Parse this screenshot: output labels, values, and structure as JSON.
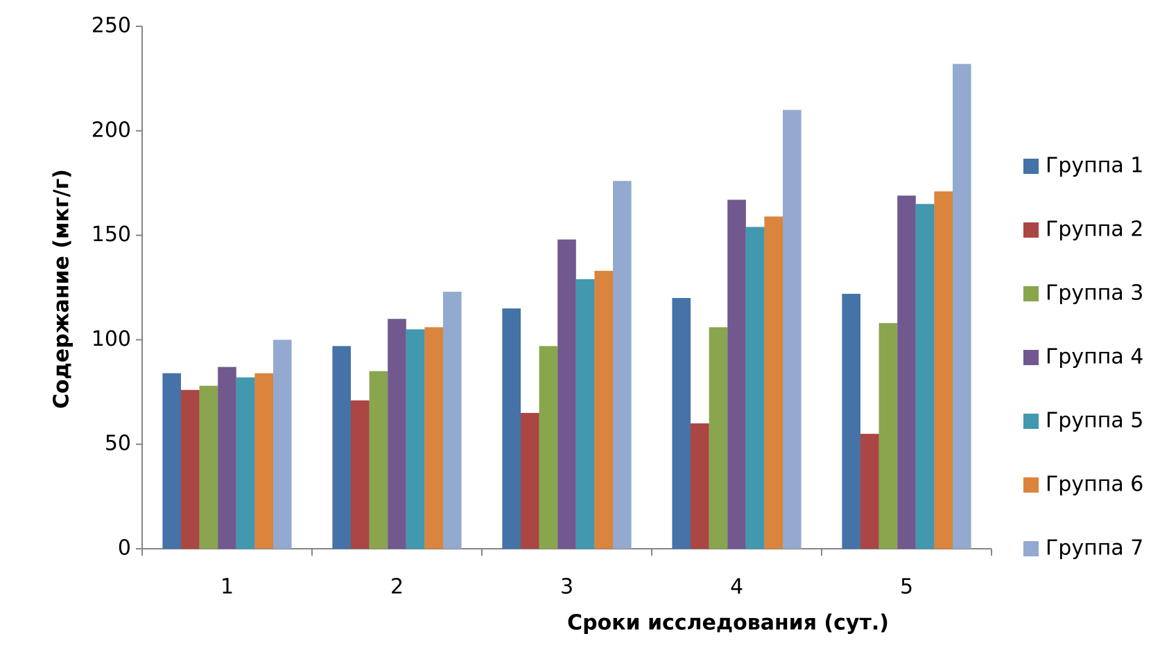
{
  "chart_data": {
    "type": "bar",
    "y_label": "Содержание (мкг/г)",
    "x_label": "Сроки исследования (сут.)",
    "categories": [
      "1",
      "2",
      "3",
      "4",
      "5"
    ],
    "series": [
      {
        "name": "Группа 1",
        "color": "#4572a7",
        "values": [
          84,
          97,
          115,
          120,
          122
        ]
      },
      {
        "name": "Группа 2",
        "color": "#aa4643",
        "values": [
          76,
          71,
          65,
          60,
          55
        ]
      },
      {
        "name": "Группа 3",
        "color": "#89a54e",
        "values": [
          78,
          85,
          97,
          106,
          108
        ]
      },
      {
        "name": "Группа 4",
        "color": "#71588f",
        "values": [
          87,
          110,
          148,
          167,
          169
        ]
      },
      {
        "name": "Группа 5",
        "color": "#4198af",
        "values": [
          82,
          105,
          129,
          154,
          165
        ]
      },
      {
        "name": "Группа 6",
        "color": "#db843d",
        "values": [
          84,
          106,
          133,
          159,
          171
        ]
      },
      {
        "name": "Группа 7",
        "color": "#93a9cf",
        "values": [
          100,
          123,
          176,
          210,
          232
        ]
      }
    ],
    "ylim": [
      0,
      250
    ],
    "yticks": [
      0,
      50,
      100,
      150,
      200,
      250
    ],
    "grid": false,
    "legend": "right"
  }
}
